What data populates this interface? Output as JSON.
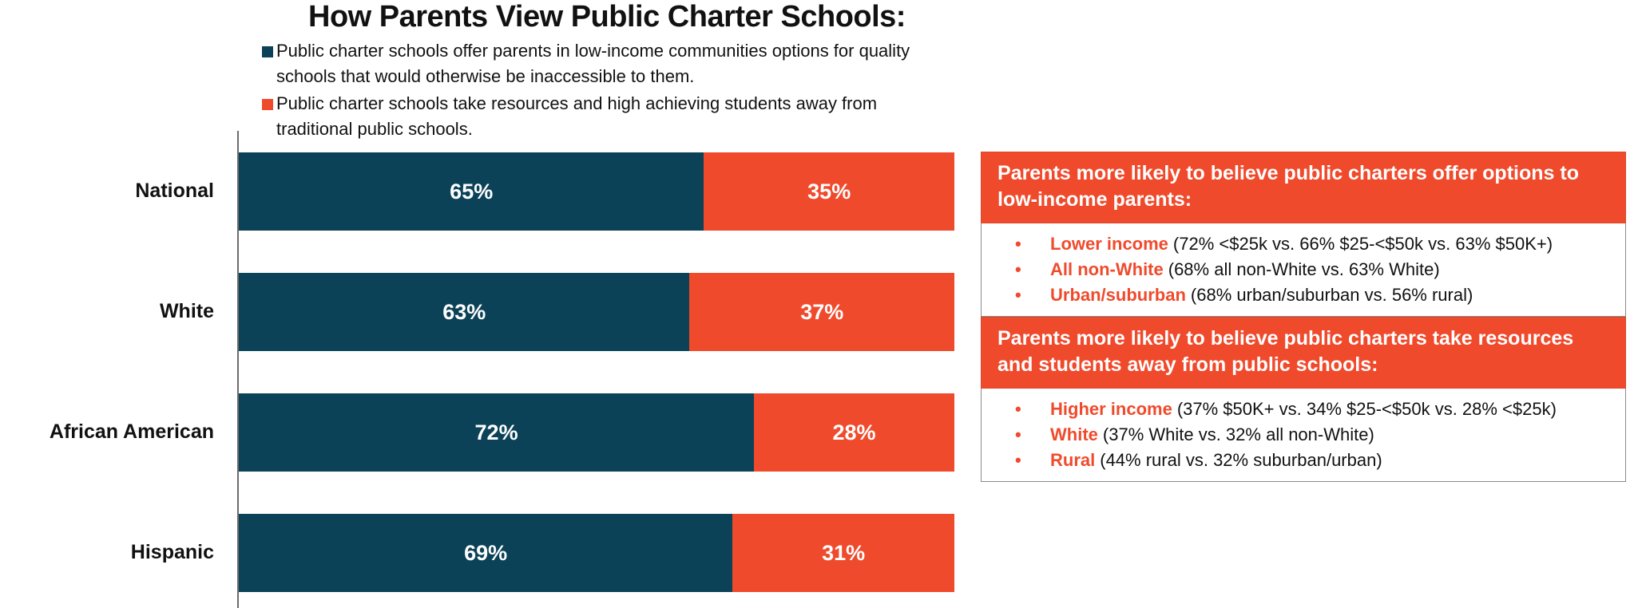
{
  "colors": {
    "navy": "#0b4258",
    "orange": "#f04a2c"
  },
  "chart_data": {
    "type": "bar",
    "orientation": "horizontal",
    "stacked": true,
    "title": "How Parents View Public Charter Schools:",
    "categories": [
      "National",
      "White",
      "African American",
      "Hispanic"
    ],
    "series": [
      {
        "name": "Public charter schools offer parents in low-income communities options for quality schools that would otherwise be inaccessible to them.",
        "color": "#0b4258",
        "values": [
          65,
          63,
          72,
          69
        ],
        "labels": [
          "65%",
          "63%",
          "72%",
          "69%"
        ]
      },
      {
        "name": "Public charter schools take resources and high achieving students away from traditional public schools.",
        "color": "#f04a2c",
        "values": [
          35,
          37,
          28,
          31
        ],
        "labels": [
          "35%",
          "37%",
          "28%",
          "31%"
        ]
      }
    ],
    "xlim": [
      0,
      100
    ],
    "grid": false,
    "legend_position": "top"
  },
  "panels": [
    {
      "header": "Parents more likely to believe public charters offer options to low-income parents:",
      "items": [
        {
          "bullet": "•",
          "highlight": "Lower income",
          "text": "(72% <$25k vs. 66% $25-<$50k vs. 63% $50K+)"
        },
        {
          "bullet": "•",
          "highlight": "All non-White",
          "text": "(68% all non-White vs. 63% White)"
        },
        {
          "bullet": "•",
          "highlight": "Urban/suburban",
          "text": "(68% urban/suburban vs. 56% rural)"
        }
      ]
    },
    {
      "header": "Parents more likely to believe public charters take resources and students away from public schools:",
      "items": [
        {
          "bullet": "•",
          "highlight": "Higher income",
          "text": "(37% $50K+ vs. 34% $25-<$50k vs. 28% <$25k)"
        },
        {
          "bullet": "•",
          "highlight": "White",
          "text": "(37% White vs. 32% all non-White)"
        },
        {
          "bullet": "•",
          "highlight": "Rural",
          "text": "(44% rural vs. 32% suburban/urban)"
        }
      ]
    }
  ]
}
